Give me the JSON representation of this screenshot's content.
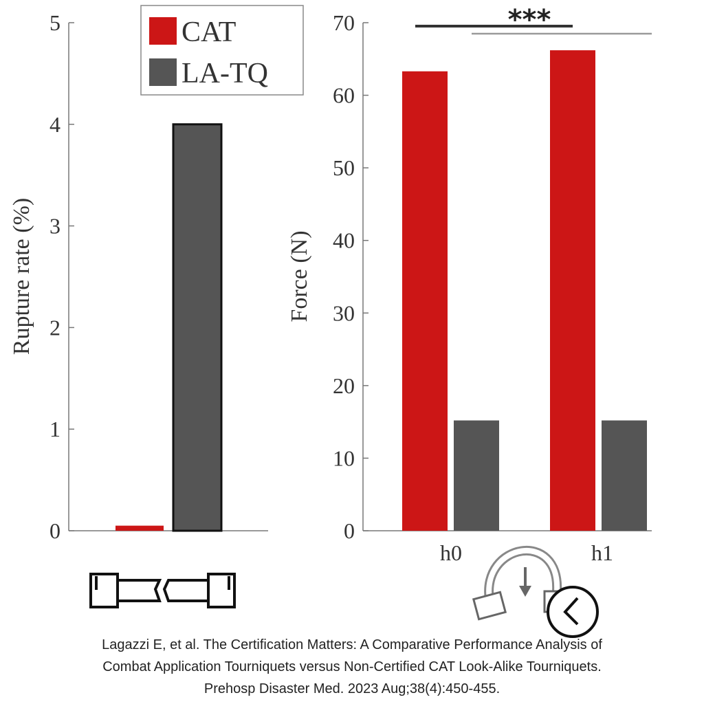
{
  "chart_data": [
    {
      "type": "bar",
      "ylabel": "Rupture rate (%)",
      "ylim": [
        0,
        5
      ],
      "yticks": [
        "0",
        "1",
        "2",
        "3",
        "4",
        "5"
      ],
      "categories": [
        ""
      ],
      "series": [
        {
          "name": "CAT",
          "color": "#cc1616",
          "values": [
            0.05
          ]
        },
        {
          "name": "LA-TQ",
          "color": "#555555",
          "values": [
            4.0
          ]
        }
      ],
      "legend": {
        "placement": "top-right",
        "entries": [
          "CAT",
          "LA-TQ"
        ]
      },
      "x_icon": "broken-strap-icon"
    },
    {
      "type": "bar",
      "ylabel": "Force (N)",
      "ylim": [
        0,
        70
      ],
      "yticks": [
        "0",
        "10",
        "20",
        "30",
        "40",
        "50",
        "60",
        "70"
      ],
      "categories": [
        "h0",
        "h1"
      ],
      "series": [
        {
          "name": "CAT",
          "color": "#cc1616",
          "values": [
            63.3,
            66.2
          ]
        },
        {
          "name": "LA-TQ",
          "color": "#555555",
          "values": [
            15.2,
            15.2
          ]
        }
      ],
      "annotation": "***",
      "x_icon": "time-strap-icon"
    }
  ],
  "caption": [
    "Lagazzi E, et al. The Certification Matters: A Comparative Performance Analysis of",
    "Combat Application Tourniquets versus Non-Certified CAT Look-Alike Tourniquets.",
    "Prehosp Disaster Med. 2023 Aug;38(4):450-455."
  ]
}
